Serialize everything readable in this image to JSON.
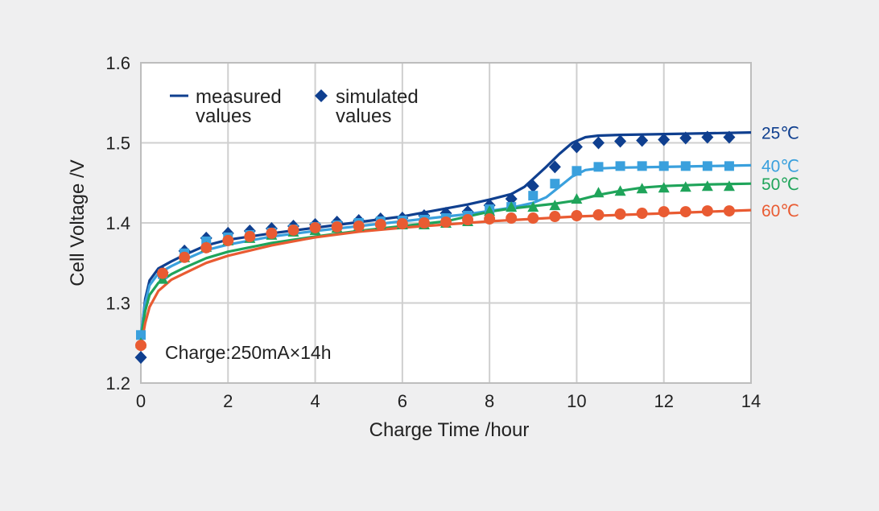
{
  "chart_data": {
    "type": "line",
    "xlabel": "Charge Time /hour",
    "ylabel": "Cell Voltage /V",
    "xlim": [
      0,
      14
    ],
    "ylim": [
      1.2,
      1.6
    ],
    "xticks": [
      "0",
      "2",
      "4",
      "6",
      "8",
      "10",
      "12",
      "14"
    ],
    "yticks": [
      "1.2",
      "1.3",
      "1.4",
      "1.5",
      "1.6"
    ],
    "grid": true,
    "legend": {
      "placement": "top-left",
      "measured_line1": "measured",
      "measured_line2": "values",
      "simulated_line1": "simulated",
      "simulated_line2": "values"
    },
    "annotation": "Charge:250mA×14h",
    "series": [
      {
        "name": "25℃",
        "color": "#0f3f8f",
        "marker": "diamond",
        "measured": {
          "x": [
            0,
            0.1,
            0.2,
            0.4,
            0.7,
            1,
            1.5,
            2,
            3,
            4,
            5,
            6,
            7,
            7.5,
            8,
            8.5,
            8.8,
            9,
            9.3,
            9.6,
            9.9,
            10.2,
            10.5,
            11,
            12,
            13,
            14
          ],
          "y": [
            1.255,
            1.305,
            1.328,
            1.343,
            1.352,
            1.36,
            1.372,
            1.379,
            1.387,
            1.394,
            1.401,
            1.408,
            1.418,
            1.423,
            1.429,
            1.436,
            1.445,
            1.455,
            1.47,
            1.486,
            1.5,
            1.507,
            1.509,
            1.51,
            1.511,
            1.512,
            1.513
          ]
        },
        "simulated": {
          "x": [
            0,
            0.5,
            1,
            1.5,
            2,
            2.5,
            3,
            3.5,
            4,
            4.5,
            5,
            5.5,
            6,
            6.5,
            7,
            7.5,
            8,
            8.5,
            9,
            9.5,
            10,
            10.5,
            11,
            11.5,
            12,
            12.5,
            13,
            13.5
          ],
          "y": [
            1.232,
            1.338,
            1.365,
            1.381,
            1.387,
            1.39,
            1.393,
            1.396,
            1.398,
            1.401,
            1.403,
            1.405,
            1.406,
            1.409,
            1.412,
            1.414,
            1.422,
            1.43,
            1.446,
            1.47,
            1.495,
            1.5,
            1.502,
            1.503,
            1.504,
            1.506,
            1.507,
            1.507
          ]
        }
      },
      {
        "name": "40℃",
        "color": "#3aa0dd",
        "marker": "square",
        "measured": {
          "x": [
            0,
            0.1,
            0.2,
            0.4,
            0.7,
            1,
            1.5,
            2,
            3,
            4,
            5,
            6,
            7,
            7.5,
            8,
            8.5,
            9,
            9.3,
            9.6,
            9.9,
            10.2,
            10.5,
            11,
            12,
            13,
            14
          ],
          "y": [
            1.26,
            1.3,
            1.322,
            1.337,
            1.346,
            1.354,
            1.366,
            1.373,
            1.383,
            1.39,
            1.396,
            1.402,
            1.408,
            1.411,
            1.415,
            1.419,
            1.425,
            1.432,
            1.445,
            1.458,
            1.466,
            1.468,
            1.469,
            1.47,
            1.471,
            1.472
          ]
        },
        "simulated": {
          "x": [
            0,
            0.5,
            1,
            1.5,
            2,
            2.5,
            3,
            3.5,
            4,
            4.5,
            5,
            5.5,
            6,
            6.5,
            7,
            7.5,
            8,
            8.5,
            9,
            9.5,
            10,
            10.5,
            11,
            11.5,
            12,
            12.5,
            13,
            13.5
          ],
          "y": [
            1.26,
            1.336,
            1.362,
            1.377,
            1.382,
            1.385,
            1.388,
            1.392,
            1.395,
            1.397,
            1.4,
            1.402,
            1.403,
            1.404,
            1.406,
            1.409,
            1.417,
            1.42,
            1.434,
            1.449,
            1.465,
            1.47,
            1.471,
            1.471,
            1.471,
            1.471,
            1.471,
            1.471
          ]
        }
      },
      {
        "name": "50℃",
        "color": "#1fa45a",
        "marker": "triangle",
        "measured": {
          "x": [
            0,
            0.1,
            0.2,
            0.4,
            0.7,
            1,
            1.5,
            2,
            3,
            4,
            5,
            6,
            7,
            7.5,
            8,
            8.5,
            9,
            9.5,
            10,
            10.5,
            11,
            11.5,
            12,
            13,
            14
          ],
          "y": [
            1.255,
            1.29,
            1.31,
            1.325,
            1.336,
            1.344,
            1.356,
            1.364,
            1.375,
            1.383,
            1.39,
            1.396,
            1.402,
            1.408,
            1.414,
            1.418,
            1.421,
            1.424,
            1.428,
            1.435,
            1.44,
            1.444,
            1.446,
            1.448,
            1.449
          ]
        },
        "simulated": {
          "x": [
            0,
            0.5,
            1,
            1.5,
            2,
            2.5,
            3,
            3.5,
            4,
            4.5,
            5,
            5.5,
            6,
            6.5,
            7,
            7.5,
            8,
            8.5,
            9,
            9.5,
            10,
            10.5,
            11,
            11.5,
            12,
            12.5,
            13,
            13.5
          ],
          "y": [
            1.25,
            1.33,
            1.357,
            1.37,
            1.378,
            1.381,
            1.385,
            1.389,
            1.391,
            1.394,
            1.396,
            1.398,
            1.398,
            1.398,
            1.4,
            1.402,
            1.415,
            1.42,
            1.42,
            1.422,
            1.43,
            1.438,
            1.44,
            1.443,
            1.444,
            1.445,
            1.446,
            1.446
          ]
        }
      },
      {
        "name": "60℃",
        "color": "#e95b32",
        "marker": "circle",
        "measured": {
          "x": [
            0,
            0.1,
            0.2,
            0.4,
            0.7,
            1,
            1.5,
            2,
            3,
            4,
            5,
            6,
            7,
            8,
            9,
            10,
            11,
            12,
            13,
            14
          ],
          "y": [
            1.245,
            1.275,
            1.295,
            1.315,
            1.329,
            1.337,
            1.35,
            1.359,
            1.372,
            1.382,
            1.389,
            1.394,
            1.398,
            1.402,
            1.405,
            1.408,
            1.41,
            1.412,
            1.414,
            1.416
          ]
        },
        "simulated": {
          "x": [
            0,
            0.5,
            1,
            1.5,
            2,
            2.5,
            3,
            3.5,
            4,
            4.5,
            5,
            5.5,
            6,
            6.5,
            7,
            7.5,
            8,
            8.5,
            9,
            9.5,
            10,
            10.5,
            11,
            11.5,
            12,
            12.5,
            13,
            13.5
          ],
          "y": [
            1.247,
            1.337,
            1.357,
            1.369,
            1.378,
            1.383,
            1.387,
            1.391,
            1.394,
            1.395,
            1.396,
            1.398,
            1.399,
            1.4,
            1.401,
            1.404,
            1.405,
            1.406,
            1.406,
            1.408,
            1.409,
            1.41,
            1.411,
            1.412,
            1.414,
            1.414,
            1.415,
            1.415
          ]
        }
      }
    ]
  }
}
